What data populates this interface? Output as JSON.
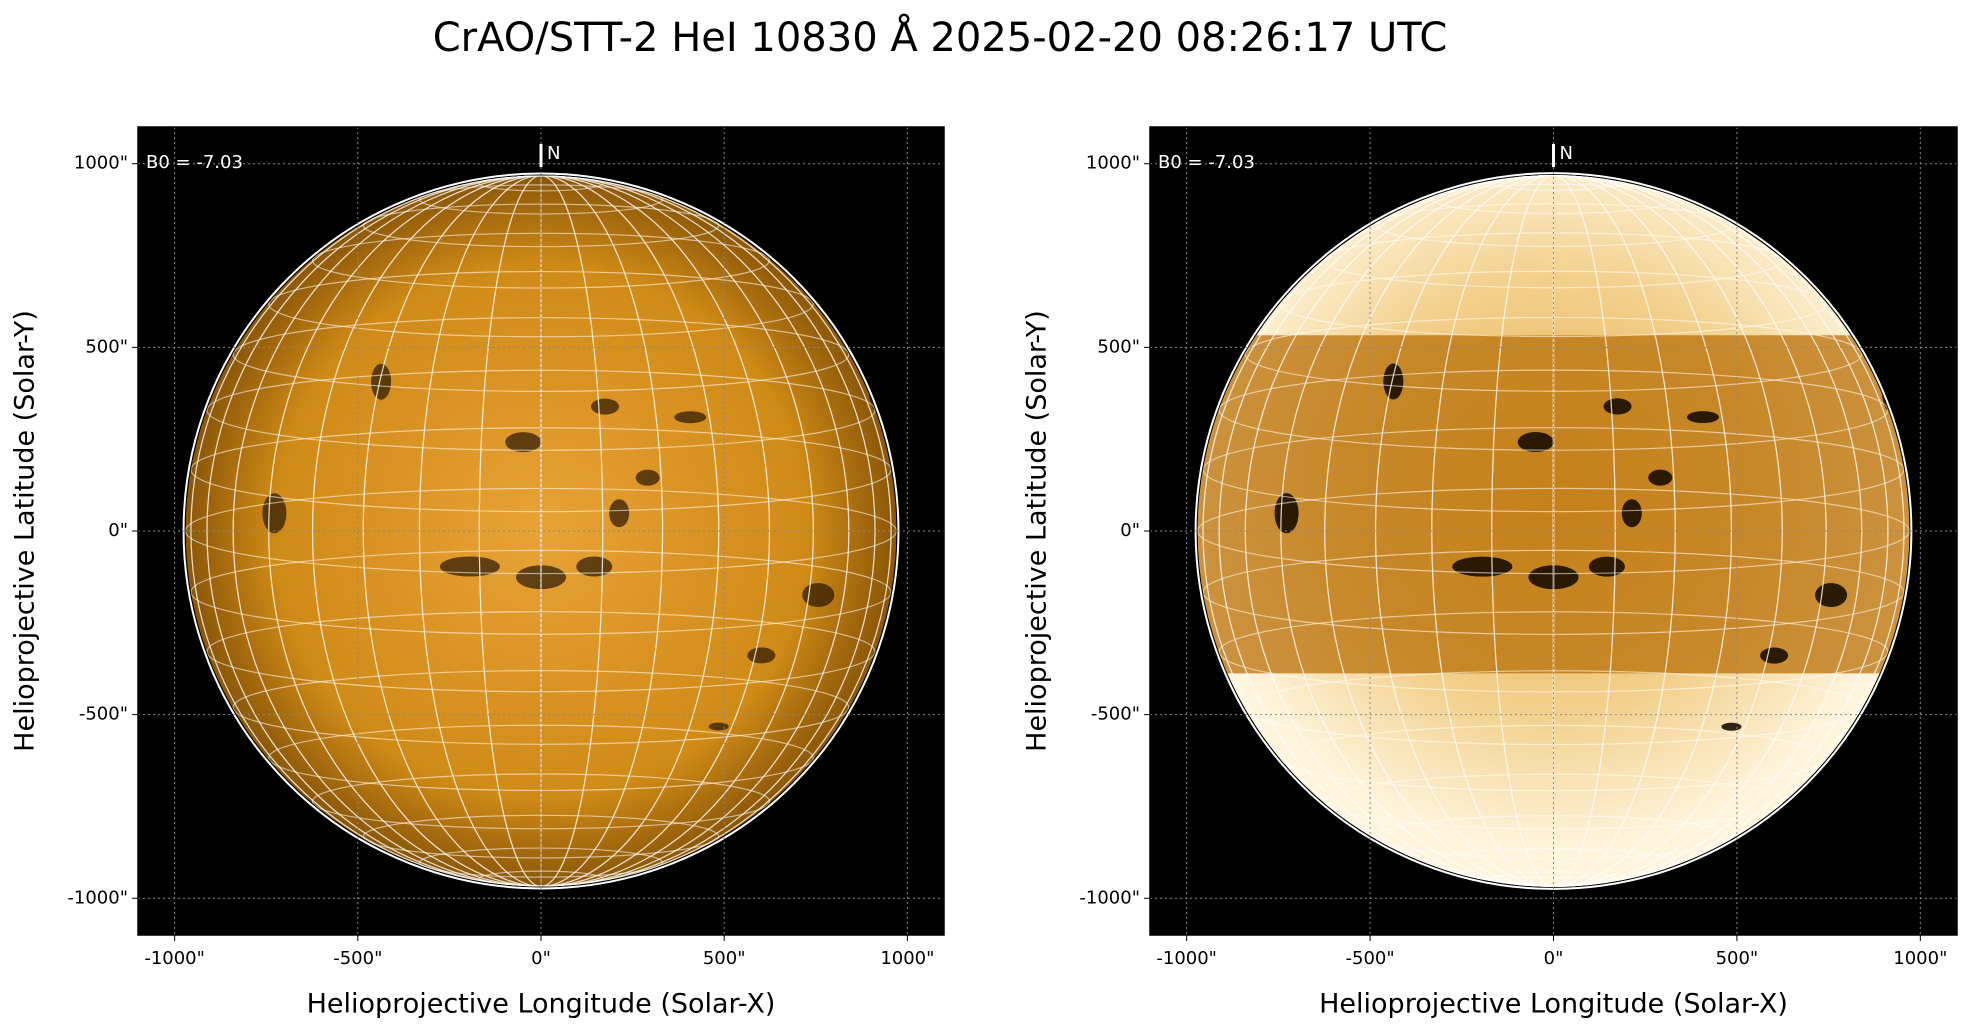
{
  "title": "CrAO/STT-2 HeI 10830 Å 2025-02-20 08:26:17 UTC",
  "chart_data": [
    {
      "type": "image",
      "variant": "normal",
      "xlabel": "Helioprojective Longitude (Solar-X)",
      "ylabel": "Helioprojective Latitude (Solar-Y)",
      "annotations": [
        "B0 = -7.03",
        "N"
      ],
      "xlim": [
        -1100,
        1100
      ],
      "ylim": [
        -1100,
        1100
      ],
      "xticks": [
        {
          "value": -1000,
          "label": "-1000\""
        },
        {
          "value": -500,
          "label": "-500\""
        },
        {
          "value": 0,
          "label": "0\""
        },
        {
          "value": 500,
          "label": "500\""
        },
        {
          "value": 1000,
          "label": "1000\""
        }
      ],
      "yticks": [
        {
          "value": -1000,
          "label": "-1000\""
        },
        {
          "value": -500,
          "label": "-500\""
        },
        {
          "value": 0,
          "label": "0\""
        },
        {
          "value": 500,
          "label": "500\""
        },
        {
          "value": 1000,
          "label": "1000\""
        }
      ],
      "grid": true
    },
    {
      "type": "image",
      "variant": "enhanced",
      "xlabel": "Helioprojective Longitude (Solar-X)",
      "ylabel": "Helioprojective Latitude (Solar-Y)",
      "annotations": [
        "B0 = -7.03",
        "N"
      ],
      "xlim": [
        -1100,
        1100
      ],
      "ylim": [
        -1100,
        1100
      ],
      "xticks": [
        {
          "value": -1000,
          "label": "-1000\""
        },
        {
          "value": -500,
          "label": "-500\""
        },
        {
          "value": 0,
          "label": "0\""
        },
        {
          "value": 500,
          "label": "500\""
        },
        {
          "value": 1000,
          "label": "1000\""
        }
      ],
      "yticks": [
        {
          "value": -1000,
          "label": "-1000\""
        },
        {
          "value": -500,
          "label": "-500\""
        },
        {
          "value": 0,
          "label": "0\""
        },
        {
          "value": 500,
          "label": "500\""
        },
        {
          "value": 1000,
          "label": "1000\""
        }
      ],
      "grid": true
    }
  ]
}
